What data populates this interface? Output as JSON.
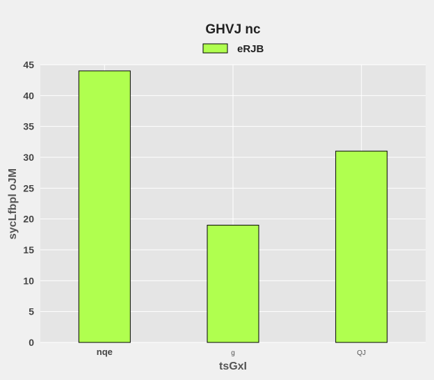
{
  "chart_data": {
    "type": "bar",
    "title": "GHVJ nc",
    "xlabel": "tsGxI",
    "ylabel": "sycLfbpl oJM",
    "categories": [
      "nqe",
      "g",
      "QJ"
    ],
    "series": [
      {
        "name": "eRJB",
        "values": [
          44,
          19,
          31
        ],
        "color": "#b0ff4f"
      }
    ],
    "ylim": [
      0,
      45
    ],
    "yticks": [
      0,
      5,
      10,
      15,
      20,
      25,
      30,
      35,
      40,
      45
    ],
    "grid": true,
    "legend_position": "top-center",
    "plot_background": "#e5e5e5",
    "page_background": "#f0f0f0"
  }
}
